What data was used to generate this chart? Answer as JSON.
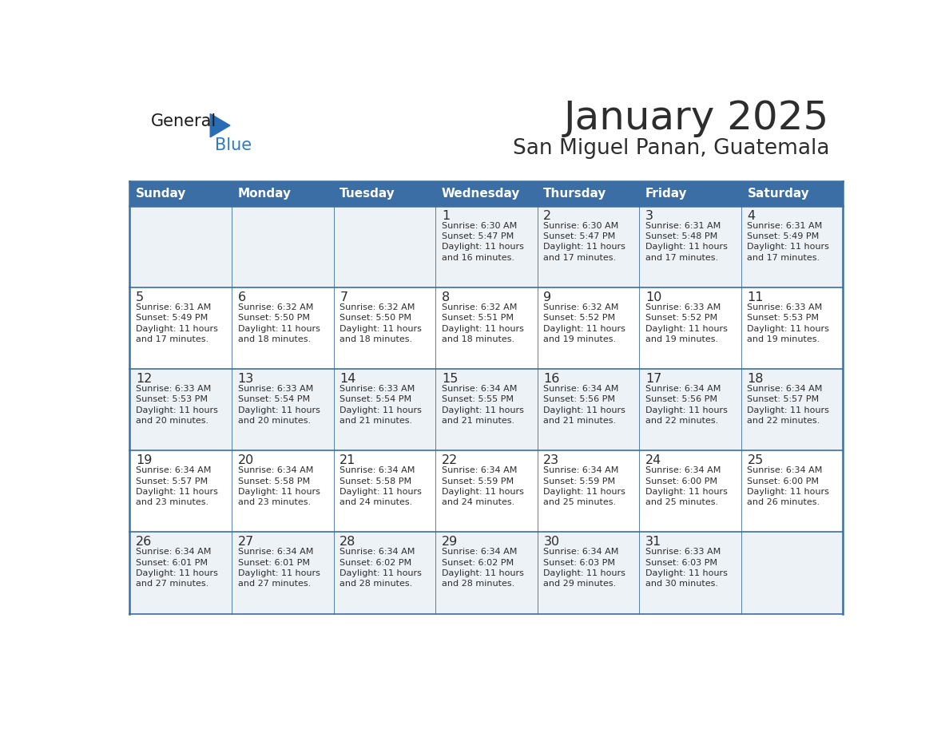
{
  "title": "January 2025",
  "subtitle": "San Miguel Panan, Guatemala",
  "title_color": "#2d2d2d",
  "subtitle_color": "#2d2d2d",
  "header_bg_color": "#3a6ea5",
  "header_text_color": "#ffffff",
  "row_bg_even": "#edf2f7",
  "row_bg_odd": "#ffffff",
  "border_color": "#3a6ea5",
  "day_number_color": "#2d2d2d",
  "cell_text_color": "#2d2d2d",
  "days_of_week": [
    "Sunday",
    "Monday",
    "Tuesday",
    "Wednesday",
    "Thursday",
    "Friday",
    "Saturday"
  ],
  "calendar_data": [
    [
      {
        "day": "",
        "info": ""
      },
      {
        "day": "",
        "info": ""
      },
      {
        "day": "",
        "info": ""
      },
      {
        "day": "1",
        "info": "Sunrise: 6:30 AM\nSunset: 5:47 PM\nDaylight: 11 hours\nand 16 minutes."
      },
      {
        "day": "2",
        "info": "Sunrise: 6:30 AM\nSunset: 5:47 PM\nDaylight: 11 hours\nand 17 minutes."
      },
      {
        "day": "3",
        "info": "Sunrise: 6:31 AM\nSunset: 5:48 PM\nDaylight: 11 hours\nand 17 minutes."
      },
      {
        "day": "4",
        "info": "Sunrise: 6:31 AM\nSunset: 5:49 PM\nDaylight: 11 hours\nand 17 minutes."
      }
    ],
    [
      {
        "day": "5",
        "info": "Sunrise: 6:31 AM\nSunset: 5:49 PM\nDaylight: 11 hours\nand 17 minutes."
      },
      {
        "day": "6",
        "info": "Sunrise: 6:32 AM\nSunset: 5:50 PM\nDaylight: 11 hours\nand 18 minutes."
      },
      {
        "day": "7",
        "info": "Sunrise: 6:32 AM\nSunset: 5:50 PM\nDaylight: 11 hours\nand 18 minutes."
      },
      {
        "day": "8",
        "info": "Sunrise: 6:32 AM\nSunset: 5:51 PM\nDaylight: 11 hours\nand 18 minutes."
      },
      {
        "day": "9",
        "info": "Sunrise: 6:32 AM\nSunset: 5:52 PM\nDaylight: 11 hours\nand 19 minutes."
      },
      {
        "day": "10",
        "info": "Sunrise: 6:33 AM\nSunset: 5:52 PM\nDaylight: 11 hours\nand 19 minutes."
      },
      {
        "day": "11",
        "info": "Sunrise: 6:33 AM\nSunset: 5:53 PM\nDaylight: 11 hours\nand 19 minutes."
      }
    ],
    [
      {
        "day": "12",
        "info": "Sunrise: 6:33 AM\nSunset: 5:53 PM\nDaylight: 11 hours\nand 20 minutes."
      },
      {
        "day": "13",
        "info": "Sunrise: 6:33 AM\nSunset: 5:54 PM\nDaylight: 11 hours\nand 20 minutes."
      },
      {
        "day": "14",
        "info": "Sunrise: 6:33 AM\nSunset: 5:54 PM\nDaylight: 11 hours\nand 21 minutes."
      },
      {
        "day": "15",
        "info": "Sunrise: 6:34 AM\nSunset: 5:55 PM\nDaylight: 11 hours\nand 21 minutes."
      },
      {
        "day": "16",
        "info": "Sunrise: 6:34 AM\nSunset: 5:56 PM\nDaylight: 11 hours\nand 21 minutes."
      },
      {
        "day": "17",
        "info": "Sunrise: 6:34 AM\nSunset: 5:56 PM\nDaylight: 11 hours\nand 22 minutes."
      },
      {
        "day": "18",
        "info": "Sunrise: 6:34 AM\nSunset: 5:57 PM\nDaylight: 11 hours\nand 22 minutes."
      }
    ],
    [
      {
        "day": "19",
        "info": "Sunrise: 6:34 AM\nSunset: 5:57 PM\nDaylight: 11 hours\nand 23 minutes."
      },
      {
        "day": "20",
        "info": "Sunrise: 6:34 AM\nSunset: 5:58 PM\nDaylight: 11 hours\nand 23 minutes."
      },
      {
        "day": "21",
        "info": "Sunrise: 6:34 AM\nSunset: 5:58 PM\nDaylight: 11 hours\nand 24 minutes."
      },
      {
        "day": "22",
        "info": "Sunrise: 6:34 AM\nSunset: 5:59 PM\nDaylight: 11 hours\nand 24 minutes."
      },
      {
        "day": "23",
        "info": "Sunrise: 6:34 AM\nSunset: 5:59 PM\nDaylight: 11 hours\nand 25 minutes."
      },
      {
        "day": "24",
        "info": "Sunrise: 6:34 AM\nSunset: 6:00 PM\nDaylight: 11 hours\nand 25 minutes."
      },
      {
        "day": "25",
        "info": "Sunrise: 6:34 AM\nSunset: 6:00 PM\nDaylight: 11 hours\nand 26 minutes."
      }
    ],
    [
      {
        "day": "26",
        "info": "Sunrise: 6:34 AM\nSunset: 6:01 PM\nDaylight: 11 hours\nand 27 minutes."
      },
      {
        "day": "27",
        "info": "Sunrise: 6:34 AM\nSunset: 6:01 PM\nDaylight: 11 hours\nand 27 minutes."
      },
      {
        "day": "28",
        "info": "Sunrise: 6:34 AM\nSunset: 6:02 PM\nDaylight: 11 hours\nand 28 minutes."
      },
      {
        "day": "29",
        "info": "Sunrise: 6:34 AM\nSunset: 6:02 PM\nDaylight: 11 hours\nand 28 minutes."
      },
      {
        "day": "30",
        "info": "Sunrise: 6:34 AM\nSunset: 6:03 PM\nDaylight: 11 hours\nand 29 minutes."
      },
      {
        "day": "31",
        "info": "Sunrise: 6:33 AM\nSunset: 6:03 PM\nDaylight: 11 hours\nand 30 minutes."
      },
      {
        "day": "",
        "info": ""
      }
    ]
  ],
  "logo_general_color": "#1a1a1a",
  "logo_blue_color": "#2a7cc7",
  "logo_triangle_color": "#2a6db5"
}
